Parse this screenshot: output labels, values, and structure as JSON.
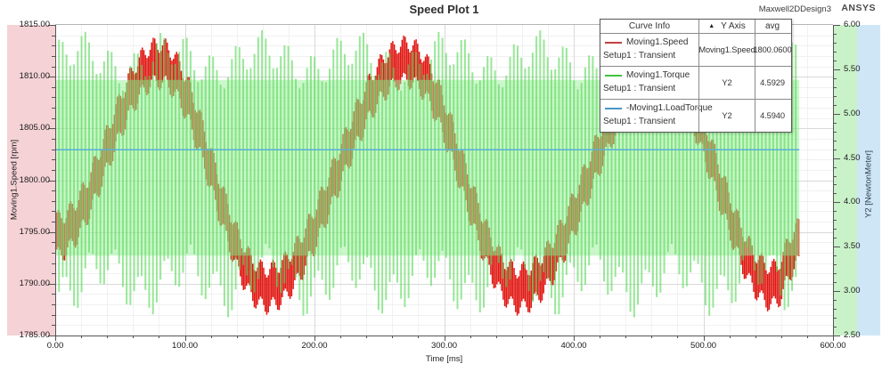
{
  "header": {
    "title": "Speed Plot 1",
    "design_name": "Maxwell2DDesign3",
    "brand": "ANSYS"
  },
  "legend": {
    "headers": [
      "Curve Info",
      "Y Axis",
      "avg"
    ],
    "sort_icon": "▲",
    "rows": [
      {
        "name": "Moving1.Speed",
        "setup": "Setup1 : Transient",
        "y_axis": "Moving1.Speed",
        "avg": "1800.0600",
        "color": "#c24040"
      },
      {
        "name": "Moving1.Torque",
        "setup": "Setup1 : Transient",
        "y_axis": "Y2",
        "avg": "4.5929",
        "color": "#3fc43f"
      },
      {
        "name": "-Moving1.LoadTorque",
        "setup": "Setup1 : Transient",
        "y_axis": "Y2",
        "avg": "4.5940",
        "color": "#4a97c9"
      }
    ]
  },
  "axes": {
    "left": {
      "label": "Moving1.Speed [rpm]",
      "ticks": [
        {
          "value": 1815,
          "label": "1815.00"
        },
        {
          "value": 1810,
          "label": "1810.00"
        },
        {
          "value": 1805,
          "label": "1805.00"
        },
        {
          "value": 1800,
          "label": "1800.00"
        },
        {
          "value": 1795,
          "label": "1795.00"
        },
        {
          "value": 1790,
          "label": "1790.00"
        },
        {
          "value": 1785,
          "label": "1785.00"
        }
      ]
    },
    "right": {
      "label": "Y2 [NewtonMeter]",
      "ticks": [
        {
          "value": 6.0,
          "label": "6.00"
        },
        {
          "value": 5.5,
          "label": "5.50"
        },
        {
          "value": 5.0,
          "label": "5.00"
        },
        {
          "value": 4.5,
          "label": "4.50"
        },
        {
          "value": 4.0,
          "label": "4.00"
        },
        {
          "value": 3.5,
          "label": "3.50"
        },
        {
          "value": 3.0,
          "label": "3.00"
        },
        {
          "value": 2.5,
          "label": "2.50"
        }
      ]
    },
    "x": {
      "label": "Time [ms]",
      "ticks": [
        {
          "value": 0,
          "label": "0.00"
        },
        {
          "value": 100,
          "label": "100.00"
        },
        {
          "value": 200,
          "label": "200.00"
        },
        {
          "value": 300,
          "label": "300.00"
        },
        {
          "value": 400,
          "label": "400.00"
        },
        {
          "value": 500,
          "label": "500.00"
        },
        {
          "value": 600,
          "label": "600.00"
        }
      ]
    }
  },
  "colors": {
    "left_strip": "#f5d2d6",
    "right_strip_green": "#c9f2c9",
    "right_strip_blue": "#cfe6f7",
    "plot_bg": "#ffffff",
    "grid_major": "#d9d9d9",
    "grid_minor": "#f1f1f1",
    "axis": "#555555",
    "plot_top_border": "#b5b5b5"
  },
  "chart_data": {
    "type": "line",
    "title": "Speed Plot 1",
    "xlabel": "Time [ms]",
    "legend_position": "top-right",
    "grid": true,
    "x_range": [
      0,
      600
    ],
    "x_data_end": 574,
    "x_major_step": 100,
    "x_minor_step": 20,
    "left_axis": {
      "label": "Moving1.Speed [rpm]",
      "range": [
        1785,
        1815
      ],
      "major_step": 5,
      "minor_step": 1
    },
    "right_axis": {
      "label": "Y2 [NewtonMeter]",
      "range": [
        2.5,
        6.0
      ],
      "major_step": 0.5,
      "minor_step": 0.1
    },
    "series": [
      {
        "name": "Moving1.Speed",
        "render": "ripple_band",
        "axis": "left",
        "avg": 1800.06,
        "color": "#e01510",
        "mean_keypoints": [
          [
            0,
            1794.5
          ],
          [
            80,
            1811.3
          ],
          [
            163,
            1789.6
          ],
          [
            271,
            1811.4
          ],
          [
            358,
            1789.5
          ],
          [
            466,
            1811.2
          ],
          [
            554,
            1789.8
          ],
          [
            574,
            1793.8
          ]
        ],
        "ripple_half_min": 1.0,
        "ripple_half_max": 2.6,
        "ripple_period_ms": 9.2,
        "stripe_step_ms": 1.2,
        "stripe_width": 1.5
      },
      {
        "name": "Moving1.Torque",
        "render": "stripe_band",
        "axis": "right",
        "avg": 4.5929,
        "stripe_color": "rgba(88,216,88,0.62)",
        "fill_color": "rgba(152,240,152,0.5)",
        "core_range": [
          3.4,
          5.38
        ],
        "envelope_top": {
          "base": 5.6,
          "a1": 0.2,
          "p1": 19.5,
          "ph1": 0.5,
          "a2": 0.14,
          "p2": 71,
          "ph2": 0.0,
          "max": 5.96
        },
        "envelope_bottom": {
          "base": 3.12,
          "a1": 0.24,
          "p1": 19.5,
          "ph1": 2.4,
          "a2": 0.18,
          "p2": 63,
          "ph2": 1.0,
          "min": 2.7
        },
        "stripe_step_ms": 2.9,
        "stripe_width": 2
      },
      {
        "name": "-Moving1.LoadTorque",
        "render": "hline",
        "axis": "right",
        "avg": 4.594,
        "value": 4.594,
        "color": "#58aed6",
        "width": 1.5
      }
    ]
  }
}
